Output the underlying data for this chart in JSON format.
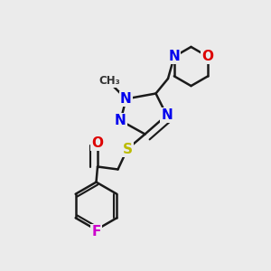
{
  "background_color": "#ebebeb",
  "bond_color": "#1a1a1a",
  "bond_width": 1.8,
  "atom_colors": {
    "N": "#0000ee",
    "O": "#dd0000",
    "S": "#bbbb00",
    "F": "#cc00cc",
    "C": "#1a1a1a"
  },
  "fig_bg": "#ebebeb",
  "font_size": 11
}
